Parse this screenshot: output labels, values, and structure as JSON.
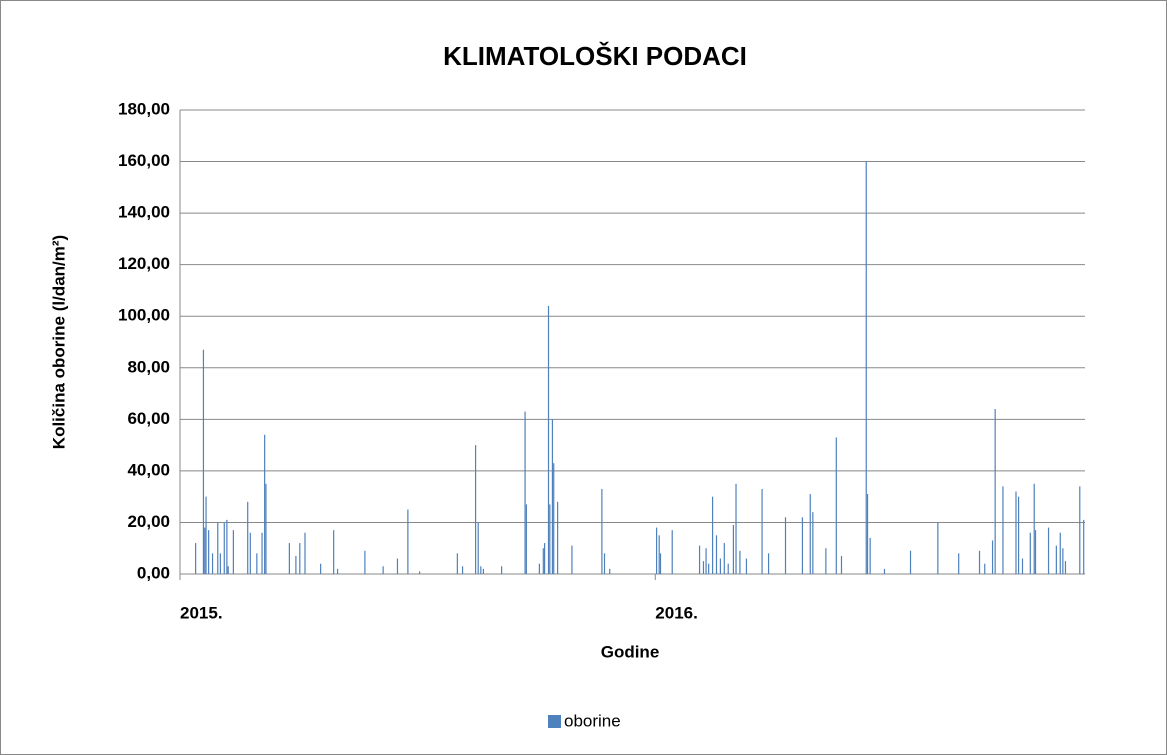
{
  "chart_data": {
    "type": "bar",
    "title": "KLIMATOLOŠKI PODACI",
    "y_label": "Količina oborine (l/dan/m²)",
    "x_label": "Godine",
    "series": [
      {
        "name": "oborine",
        "color": "#4f81bd",
        "x": [
          12,
          18,
          19,
          20,
          22,
          25,
          29,
          31,
          34,
          36,
          37,
          41,
          52,
          54,
          59,
          63,
          65,
          66,
          84,
          89,
          92,
          96,
          108,
          118,
          121,
          142,
          156,
          167,
          175,
          184,
          213,
          217,
          227,
          229,
          231,
          233,
          247,
          265,
          266,
          276,
          279,
          280,
          283,
          284,
          286,
          287,
          290,
          301,
          324,
          326,
          330,
          366,
          368,
          369,
          378,
          399,
          402,
          404,
          406,
          409,
          412,
          415,
          418,
          421,
          425,
          427,
          430,
          435,
          447,
          452,
          465,
          478,
          484,
          486,
          496,
          504,
          508,
          527,
          528,
          530,
          541,
          561,
          582,
          598,
          614,
          618,
          624,
          626,
          632,
          642,
          644,
          647,
          653,
          656,
          657,
          667,
          673,
          676,
          678,
          680,
          691,
          694
        ],
        "values": [
          12,
          87,
          18,
          30,
          17,
          8,
          20,
          8,
          20,
          21,
          3,
          17,
          28,
          16,
          8,
          16,
          54,
          35,
          12,
          7,
          12,
          16,
          4,
          17,
          2,
          9,
          3,
          6,
          25,
          1,
          8,
          3,
          50,
          20,
          3,
          2,
          3,
          63,
          27,
          4,
          10,
          12,
          104,
          27,
          60,
          43,
          28,
          11,
          33,
          8,
          2,
          18,
          15,
          8,
          17,
          11,
          5,
          10,
          4,
          30,
          15,
          6,
          12,
          4,
          19,
          35,
          9,
          6,
          33,
          8,
          22,
          22,
          31,
          24,
          10,
          53,
          7,
          160,
          31,
          14,
          2,
          9,
          20,
          8,
          9,
          4,
          13,
          64,
          34,
          32,
          30,
          6,
          16,
          35,
          17,
          18,
          11,
          16,
          10,
          5,
          34,
          21
        ]
      }
    ],
    "xlim": [
      0,
      695
    ],
    "xticks": [
      {
        "value": 0,
        "label": "2015."
      },
      {
        "value": 365,
        "label": "2016."
      }
    ],
    "ylim": [
      0,
      180
    ],
    "yticks": [
      {
        "value": 0,
        "label": "0,00"
      },
      {
        "value": 20,
        "label": "20,00"
      },
      {
        "value": 40,
        "label": "40,00"
      },
      {
        "value": 60,
        "label": "60,00"
      },
      {
        "value": 80,
        "label": "80,00"
      },
      {
        "value": 100,
        "label": "100,00"
      },
      {
        "value": 120,
        "label": "120,00"
      },
      {
        "value": 140,
        "label": "140,00"
      },
      {
        "value": 160,
        "label": "160,00"
      },
      {
        "value": 180,
        "label": "180,00"
      }
    ],
    "grid": true,
    "legend": "bottom"
  }
}
